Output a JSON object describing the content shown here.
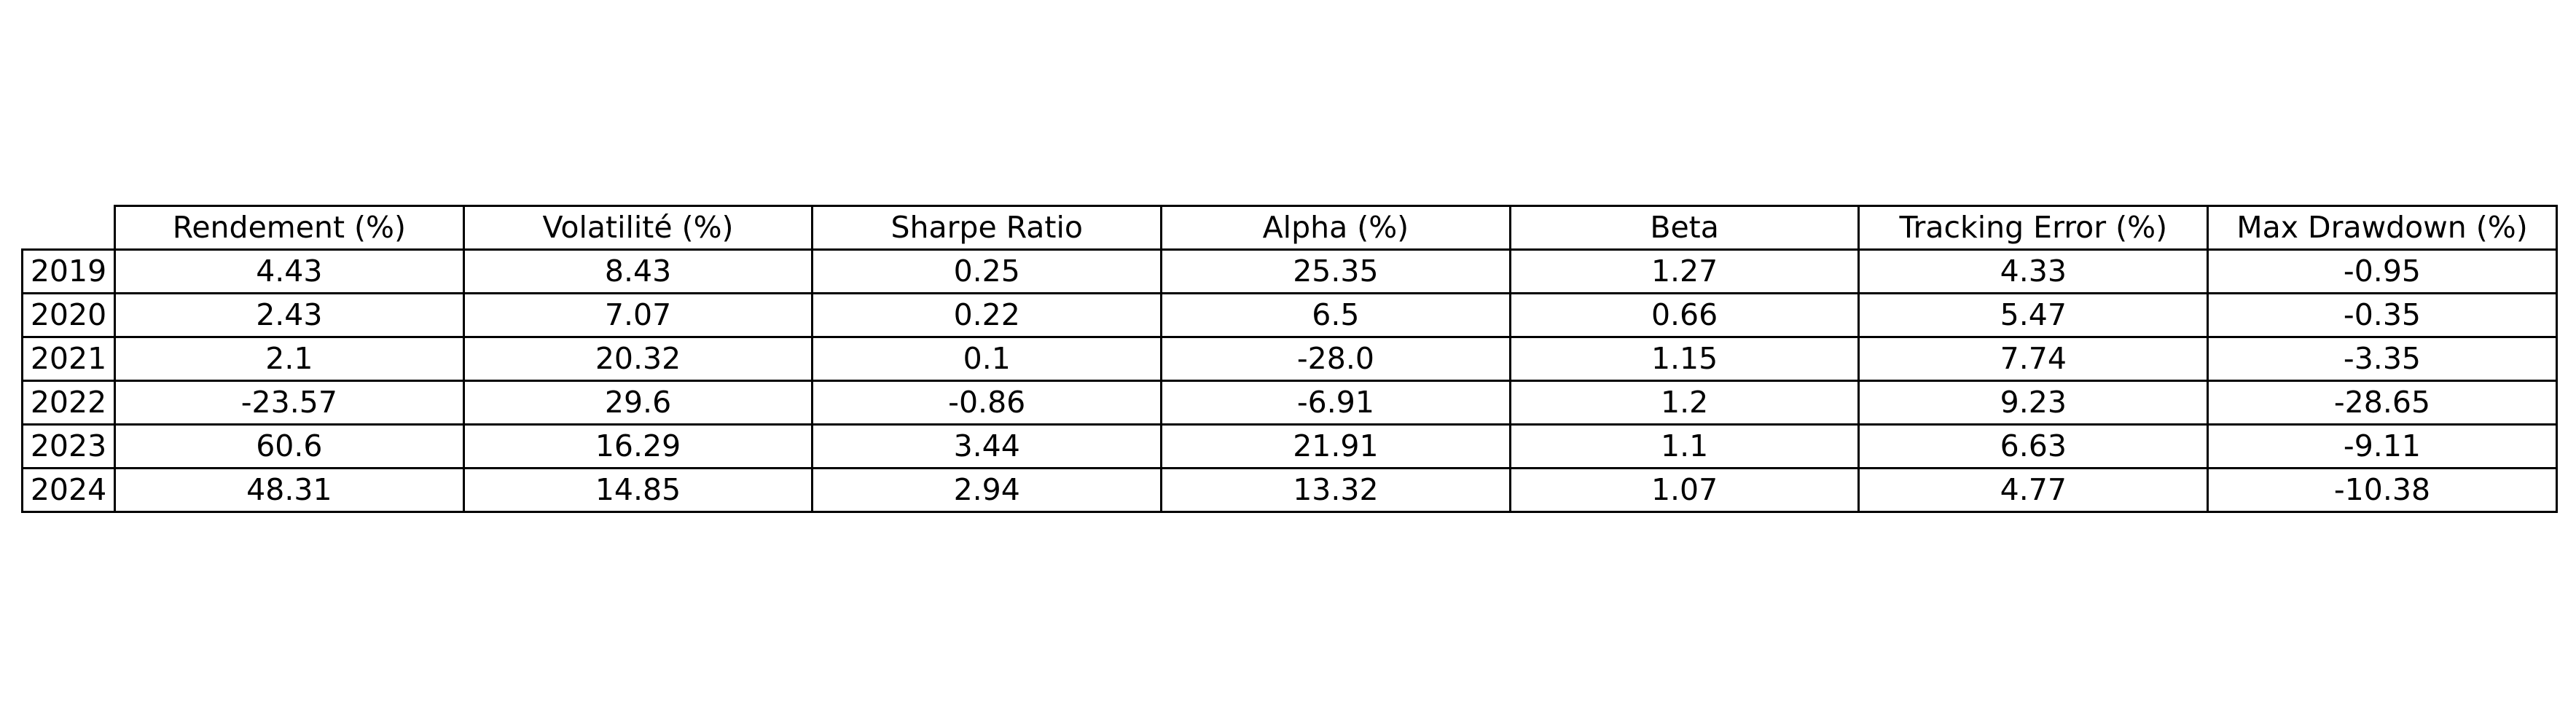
{
  "chart_data": {
    "type": "table",
    "columns": [
      "Rendement (%)",
      "Volatilité (%)",
      "Sharpe Ratio",
      "Alpha (%)",
      "Beta",
      "Tracking Error (%)",
      "Max Drawdown (%)"
    ],
    "rows": [
      {
        "label": "2019",
        "values": [
          "4.43",
          "8.43",
          "0.25",
          "25.35",
          "1.27",
          "4.33",
          "-0.95"
        ]
      },
      {
        "label": "2020",
        "values": [
          "2.43",
          "7.07",
          "0.22",
          "6.5",
          "0.66",
          "5.47",
          "-0.35"
        ]
      },
      {
        "label": "2021",
        "values": [
          "2.1",
          "20.32",
          "0.1",
          "-28.0",
          "1.15",
          "7.74",
          "-3.35"
        ]
      },
      {
        "label": "2022",
        "values": [
          "-23.57",
          "29.6",
          "-0.86",
          "-6.91",
          "1.2",
          "9.23",
          "-28.65"
        ]
      },
      {
        "label": "2023",
        "values": [
          "60.6",
          "16.29",
          "3.44",
          "21.91",
          "1.1",
          "6.63",
          "-9.11"
        ]
      },
      {
        "label": "2024",
        "values": [
          "48.31",
          "14.85",
          "2.94",
          "13.32",
          "1.07",
          "4.77",
          "-10.38"
        ]
      }
    ],
    "title": "",
    "border_color": "#000000",
    "text_color": "#000000",
    "background_color": "#ffffff"
  }
}
